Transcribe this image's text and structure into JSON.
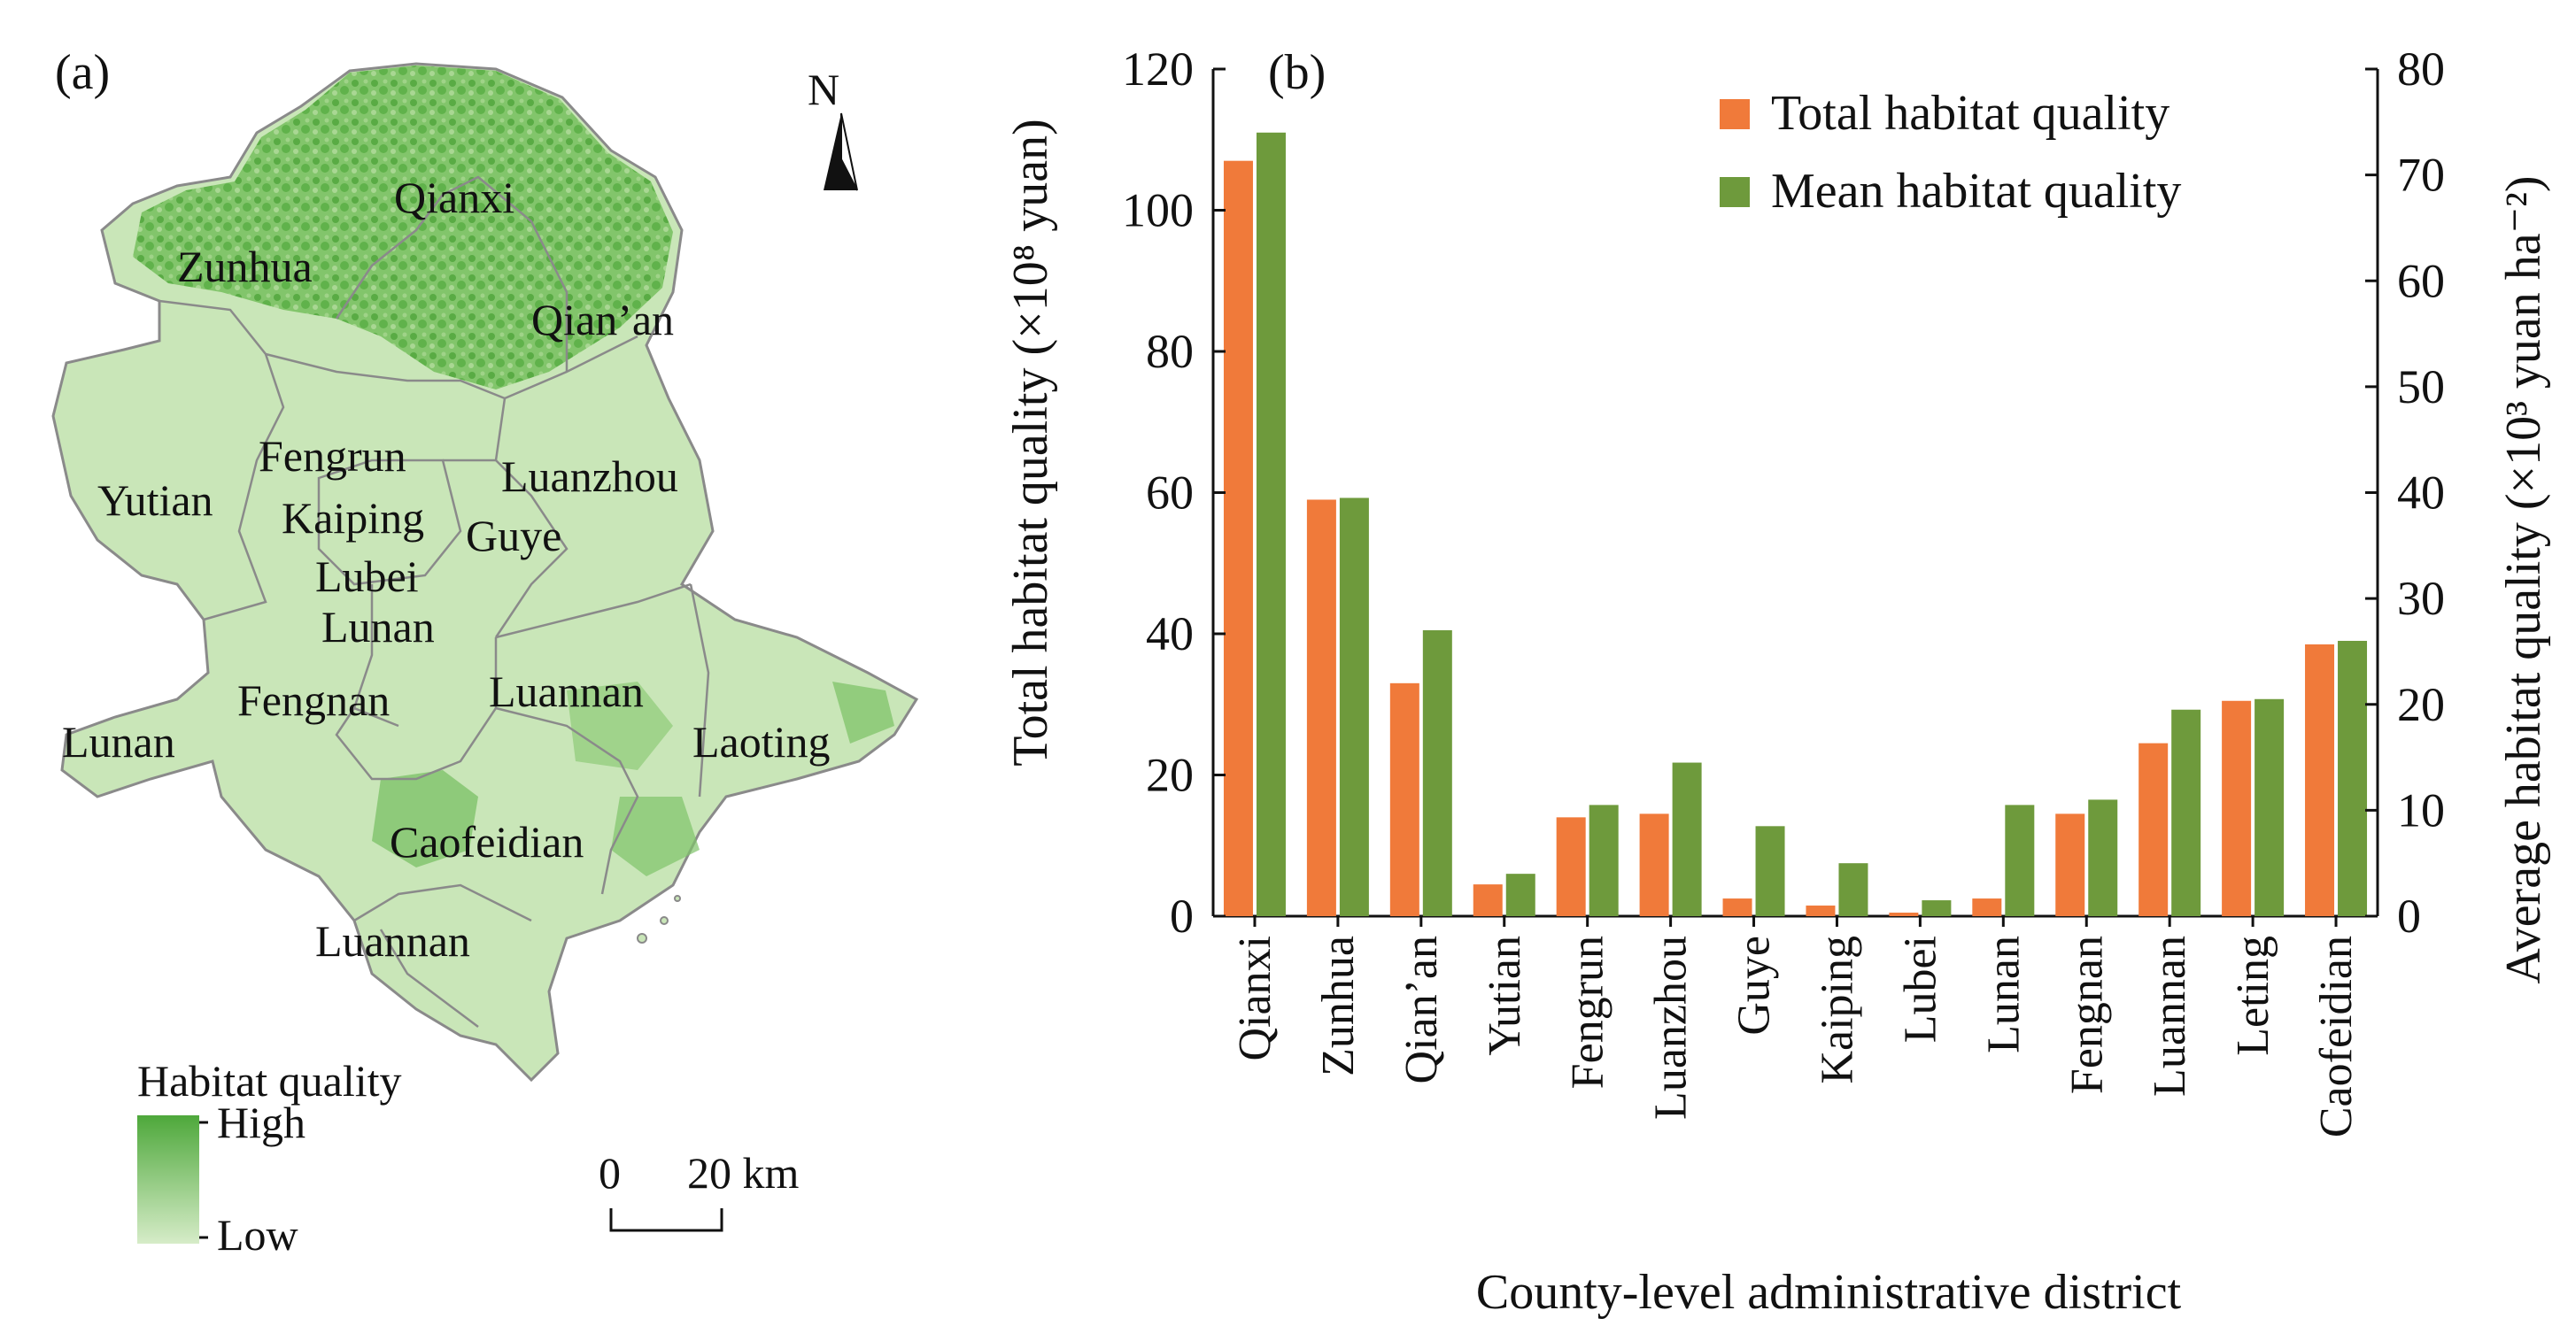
{
  "panel_a": {
    "label": "(a)",
    "north_label": "N",
    "districts": [
      {
        "name": "Qianxi"
      },
      {
        "name": "Zunhua"
      },
      {
        "name": "Qian’an"
      },
      {
        "name": "Fengrun"
      },
      {
        "name": "Luanzhou"
      },
      {
        "name": "Yutian"
      },
      {
        "name": "Kaiping"
      },
      {
        "name": "Guye"
      },
      {
        "name": "Lubei"
      },
      {
        "name": "Lunan"
      },
      {
        "name": "Fengnan"
      },
      {
        "name": "Luannan"
      },
      {
        "name": "Lunan"
      },
      {
        "name": "Laoting"
      },
      {
        "name": "Caofeidian"
      },
      {
        "name": "Luannan"
      }
    ],
    "legend": {
      "title": "Habitat quality",
      "high": "High",
      "low": "Low",
      "high_color": "#4ea83b",
      "low_color": "#d6ecc8"
    },
    "scale_bar": {
      "zero": "0",
      "end": "20 km"
    },
    "colors": {
      "land_light": "#c9e6b8",
      "land_dark": "#5cb046",
      "border": "#8a8a8a"
    }
  },
  "chart_data": {
    "type": "bar",
    "panel_label": "(b)",
    "categories": [
      "Qianxi",
      "Zunhua",
      "Qian’an",
      "Yutian",
      "Fengrun",
      "Luanzhou",
      "Guye",
      "Kaiping",
      "Lubei",
      "Lunan",
      "Fengnan",
      "Luannan",
      "Leting",
      "Caofeidian"
    ],
    "series": [
      {
        "name": "Total habitat quality",
        "axis": "left",
        "color": "#f07a3a",
        "values": [
          107,
          59,
          33,
          4.5,
          14,
          14.5,
          2.5,
          1.5,
          0.5,
          2.5,
          14.5,
          24.5,
          30.5,
          38.5
        ]
      },
      {
        "name": "Mean habitat quality",
        "axis": "right",
        "color": "#6e9a3c",
        "values": [
          74,
          39.5,
          27,
          4,
          10.5,
          14.5,
          8.5,
          5,
          1.5,
          10.5,
          11,
          19.5,
          20.5,
          26
        ]
      }
    ],
    "left_axis": {
      "label": "Total habitat quality (×10⁸ yuan)",
      "ylim": [
        0,
        120
      ],
      "ticks": [
        "0",
        "20",
        "40",
        "60",
        "80",
        "100",
        "120"
      ]
    },
    "right_axis": {
      "label": "Average habitat quality (×10³ yuan ha⁻²)",
      "ylim": [
        0,
        80
      ],
      "ticks": [
        "0",
        "10",
        "20",
        "30",
        "40",
        "50",
        "60",
        "70",
        "80"
      ]
    },
    "xlabel": "County-level administrative district",
    "legend_position": "top-right",
    "grid": false
  }
}
